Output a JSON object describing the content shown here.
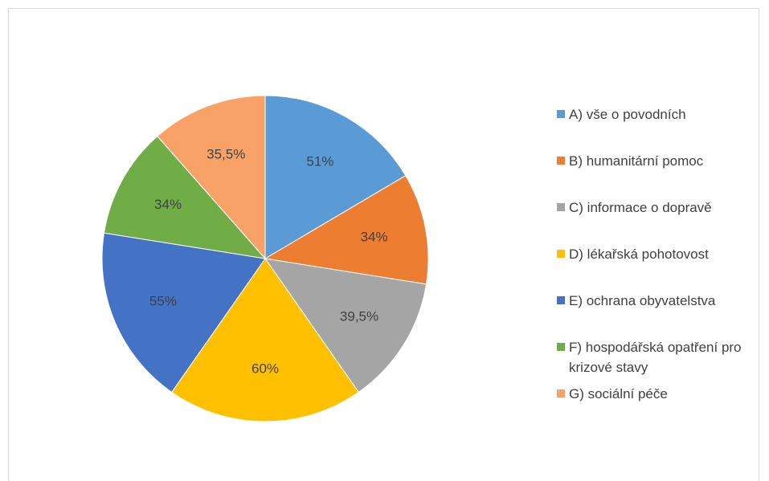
{
  "chart_data": {
    "type": "pie",
    "categories": [
      "A) vše o povodních",
      "B) humanitární pomoc",
      "C) informace o dopravě",
      "D) lékařská pohotovost",
      "E) ochrana obyvatelstva",
      "F) hospodářská opatření pro krizové stavy",
      "G) sociální péče"
    ],
    "values": [
      51,
      34,
      39.5,
      60,
      55,
      34,
      35.5
    ],
    "value_labels": [
      "51%",
      "34%",
      "39,5%",
      "60%",
      "55%",
      "34%",
      "35,5%"
    ],
    "colors": [
      "#5b9bd5",
      "#ed7d31",
      "#a5a5a5",
      "#ffc000",
      "#4472c4",
      "#70ad47",
      "#f9a267"
    ],
    "legend": "right"
  }
}
